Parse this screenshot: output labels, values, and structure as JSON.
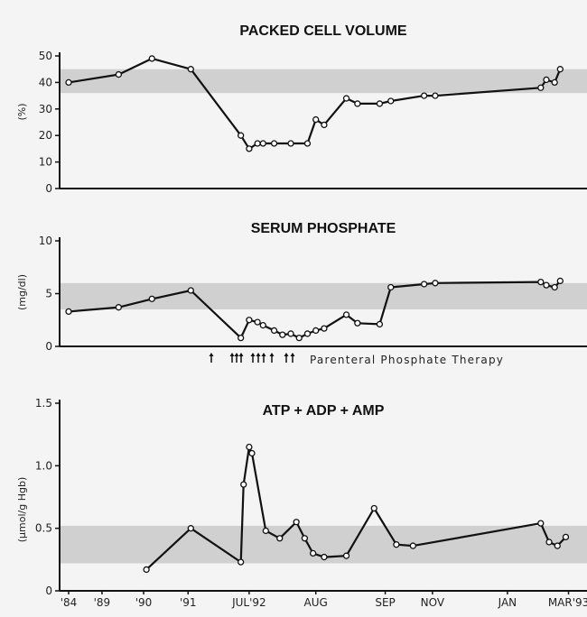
{
  "chart_data": [
    {
      "type": "line",
      "title": "PACKED CELL VOLUME",
      "ylabel": "(%)",
      "ylim": [
        0,
        50
      ],
      "yticks": [
        "0",
        "10",
        "20",
        "30",
        "40",
        "50"
      ],
      "normal_range": [
        36,
        45
      ],
      "x": [
        0,
        0.9,
        1.5,
        2.2,
        3.1,
        3.25,
        3.4,
        3.5,
        3.7,
        4.0,
        4.3,
        4.45,
        4.6,
        5.0,
        5.2,
        5.6,
        5.8,
        6.4,
        6.6,
        8.5,
        8.6,
        8.75,
        8.85
      ],
      "series": [
        {
          "values": [
            40,
            43,
            49,
            45,
            20,
            15,
            17,
            17,
            17,
            17,
            17,
            26,
            24,
            34,
            32,
            32,
            33,
            35,
            35,
            38,
            41,
            40,
            45
          ]
        }
      ]
    },
    {
      "type": "line",
      "title": "SERUM PHOSPHATE",
      "ylabel": "(mg/dl)",
      "ylim": [
        0,
        10
      ],
      "yticks": [
        "0",
        "5",
        "10"
      ],
      "normal_range": [
        3.5,
        6.0
      ],
      "x": [
        0,
        0.9,
        1.5,
        2.2,
        3.1,
        3.25,
        3.4,
        3.5,
        3.7,
        3.85,
        4.0,
        4.15,
        4.3,
        4.45,
        4.6,
        5.0,
        5.2,
        5.6,
        5.8,
        6.4,
        6.6,
        8.5,
        8.6,
        8.75,
        8.85
      ],
      "series": [
        {
          "values": [
            3.3,
            3.7,
            4.5,
            5.3,
            0.8,
            2.5,
            2.3,
            2.0,
            1.5,
            1.1,
            1.2,
            0.8,
            1.2,
            1.5,
            1.7,
            3.0,
            2.2,
            2.1,
            5.6,
            5.9,
            6.0,
            6.1,
            5.8,
            5.6,
            6.2
          ]
        }
      ],
      "therapy_label": "Parenteral Phosphate Therapy"
    },
    {
      "type": "line",
      "title": "ATP + ADP + AMP",
      "ylabel": "(µmol/g Hgb)",
      "ylim": [
        0,
        1.5
      ],
      "yticks": [
        "0",
        "0.5",
        "1.0",
        "1.5"
      ],
      "normal_range": [
        0.22,
        0.52
      ],
      "x": [
        1.4,
        2.2,
        3.1,
        3.15,
        3.25,
        3.3,
        3.55,
        3.8,
        4.1,
        4.25,
        4.4,
        4.6,
        5.0,
        5.5,
        5.9,
        6.2,
        8.5,
        8.65,
        8.8,
        8.95
      ],
      "xticks": [
        "'84",
        "'89",
        "'90",
        "'91",
        "JUL'92",
        "AUG",
        "SEP",
        "NOV",
        "JAN",
        "MAR'93"
      ],
      "series": [
        {
          "values": [
            0.17,
            0.5,
            0.23,
            0.85,
            1.15,
            1.1,
            0.48,
            0.42,
            0.55,
            0.42,
            0.3,
            0.27,
            0.28,
            0.66,
            0.37,
            0.36,
            0.54,
            0.39,
            0.36,
            0.43
          ]
        }
      ]
    }
  ],
  "colors": {
    "band": "#d0d0d0",
    "line": "#111111",
    "marker_fill": "#ffffff",
    "background": "#f4f4f4"
  }
}
